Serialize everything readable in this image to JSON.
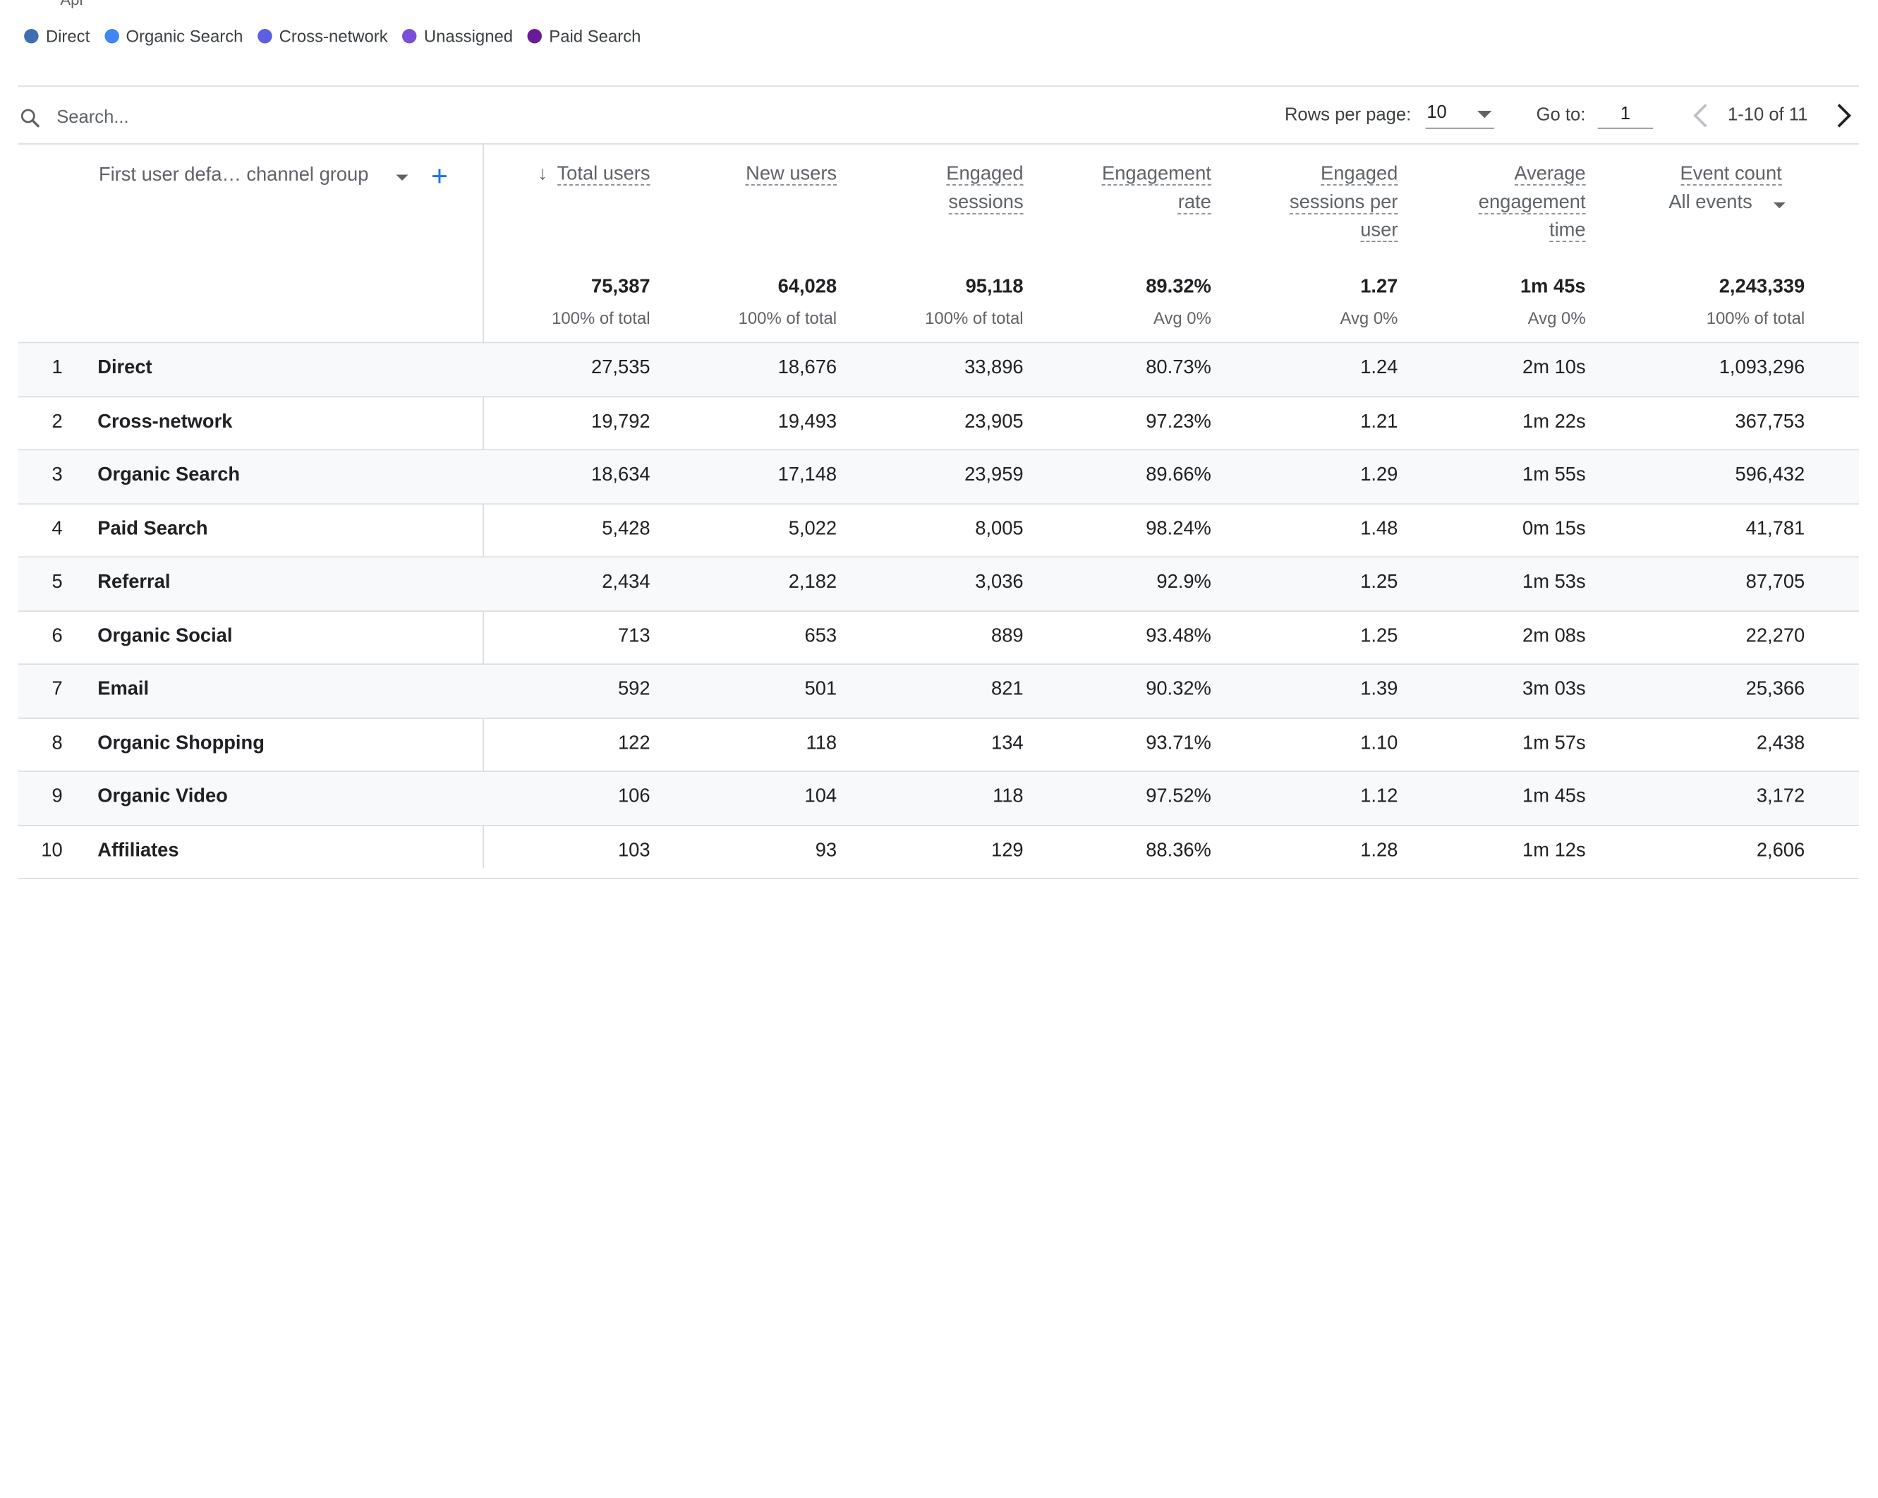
{
  "chart": {
    "axis_tick": "Apr"
  },
  "legend": [
    {
      "label": "Direct",
      "color": "#3e6fb0"
    },
    {
      "label": "Organic Search",
      "color": "#4285f4"
    },
    {
      "label": "Cross-network",
      "color": "#5b5fe0"
    },
    {
      "label": "Unassigned",
      "color": "#7b4fd8"
    },
    {
      "label": "Paid Search",
      "color": "#6a1b9a"
    }
  ],
  "toolbar": {
    "search_placeholder": "Search...",
    "rows_per_page_label": "Rows per page:",
    "rows_per_page_value": "10",
    "goto_label": "Go to:",
    "goto_value": "1",
    "range_text": "1-10 of 11"
  },
  "dimension": {
    "header": "First user defa… channel group"
  },
  "columns": [
    {
      "lines": [
        "Total users"
      ],
      "total": "75,387",
      "sub": "100% of total"
    },
    {
      "lines": [
        "New users"
      ],
      "total": "64,028",
      "sub": "100% of total"
    },
    {
      "lines": [
        "Engaged",
        "sessions"
      ],
      "total": "95,118",
      "sub": "100% of total"
    },
    {
      "lines": [
        "Engagement",
        "rate"
      ],
      "total": "89.32%",
      "sub": "Avg 0%"
    },
    {
      "lines": [
        "Engaged",
        "sessions per",
        "user"
      ],
      "total": "1.27",
      "sub": "Avg 0%"
    },
    {
      "lines": [
        "Average",
        "engagement",
        "time"
      ],
      "total": "1m 45s",
      "sub": "Avg 0%"
    },
    {
      "lines": [
        "Event count"
      ],
      "total": "2,243,339",
      "sub": "100% of total"
    }
  ],
  "event_filter": "All events",
  "rows": [
    {
      "idx": "1",
      "name": "Direct",
      "cells": [
        "27,535",
        "18,676",
        "33,896",
        "80.73%",
        "1.24",
        "2m 10s",
        "1,093,296"
      ]
    },
    {
      "idx": "2",
      "name": "Cross-network",
      "cells": [
        "19,792",
        "19,493",
        "23,905",
        "97.23%",
        "1.21",
        "1m 22s",
        "367,753"
      ]
    },
    {
      "idx": "3",
      "name": "Organic Search",
      "cells": [
        "18,634",
        "17,148",
        "23,959",
        "89.66%",
        "1.29",
        "1m 55s",
        "596,432"
      ]
    },
    {
      "idx": "4",
      "name": "Paid Search",
      "cells": [
        "5,428",
        "5,022",
        "8,005",
        "98.24%",
        "1.48",
        "0m 15s",
        "41,781"
      ]
    },
    {
      "idx": "5",
      "name": "Referral",
      "cells": [
        "2,434",
        "2,182",
        "3,036",
        "92.9%",
        "1.25",
        "1m 53s",
        "87,705"
      ]
    },
    {
      "idx": "6",
      "name": "Organic Social",
      "cells": [
        "713",
        "653",
        "889",
        "93.48%",
        "1.25",
        "2m 08s",
        "22,270"
      ]
    },
    {
      "idx": "7",
      "name": "Email",
      "cells": [
        "592",
        "501",
        "821",
        "90.32%",
        "1.39",
        "3m 03s",
        "25,366"
      ]
    },
    {
      "idx": "8",
      "name": "Organic Shopping",
      "cells": [
        "122",
        "118",
        "134",
        "93.71%",
        "1.10",
        "1m 57s",
        "2,438"
      ]
    },
    {
      "idx": "9",
      "name": "Organic Video",
      "cells": [
        "106",
        "104",
        "118",
        "97.52%",
        "1.12",
        "1m 45s",
        "3,172"
      ]
    },
    {
      "idx": "10",
      "name": "Affiliates",
      "cells": [
        "103",
        "93",
        "129",
        "88.36%",
        "1.28",
        "1m 12s",
        "2,606"
      ]
    }
  ]
}
